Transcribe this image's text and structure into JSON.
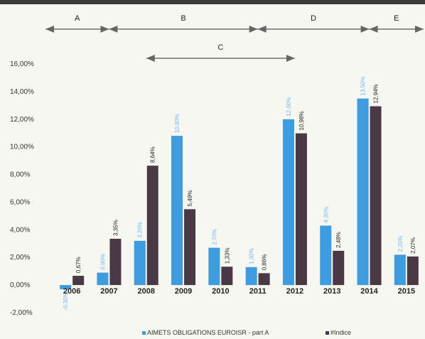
{
  "chart_data": {
    "type": "bar",
    "categories": [
      "2006",
      "2007",
      "2008",
      "2009",
      "2010",
      "2011",
      "2012",
      "2013",
      "2014",
      "2015"
    ],
    "series": [
      {
        "name": "AIMETS OBLIGATIONS EUROISR - part A",
        "color": "#3d9be0",
        "values": [
          -0.3,
          0.9,
          3.2,
          10.8,
          2.7,
          1.3,
          12.0,
          4.3,
          13.5,
          2.2
        ],
        "labels": [
          "-0.30%",
          "0.90%",
          "3.20%",
          "10.80%",
          "2.70%",
          "1.30%",
          "12.00%",
          "4.30%",
          "13.50%",
          "2.20%"
        ]
      },
      {
        "name": "#Indice",
        "color": "#4a3844",
        "values": [
          0.67,
          3.35,
          8.64,
          5.49,
          1.33,
          0.86,
          10.98,
          2.48,
          12.94,
          2.07
        ],
        "labels": [
          "0,67%",
          "3,35%",
          "8,64%",
          "5,49%",
          "1,33%",
          "0,86%",
          "10,98%",
          "2,48%",
          "12,94%",
          "2,07%"
        ]
      }
    ],
    "ylim": [
      -2,
      16
    ],
    "yticks": [
      -2,
      0,
      2,
      4,
      6,
      8,
      10,
      12,
      14,
      16
    ],
    "ytick_labels": [
      "-2,00%",
      "0,00%",
      "2,00%",
      "4,00%",
      "6,00%",
      "8,00%",
      "10,00%",
      "12,00%",
      "14,00%",
      "16,00%"
    ],
    "title": "",
    "xlabel": "",
    "ylabel": "",
    "grid": false,
    "legend_position": "bottom",
    "periods": [
      {
        "label": "A",
        "start": "2006",
        "end": "2007",
        "row": 1
      },
      {
        "label": "B",
        "start": "2007",
        "end": "2011",
        "row": 1
      },
      {
        "label": "D",
        "start": "2011",
        "end": "2014",
        "row": 1
      },
      {
        "label": "E",
        "start": "2014",
        "end": "2015",
        "row": 1
      },
      {
        "label": "C",
        "start": "2008",
        "end": "2012",
        "row": 2
      }
    ]
  }
}
